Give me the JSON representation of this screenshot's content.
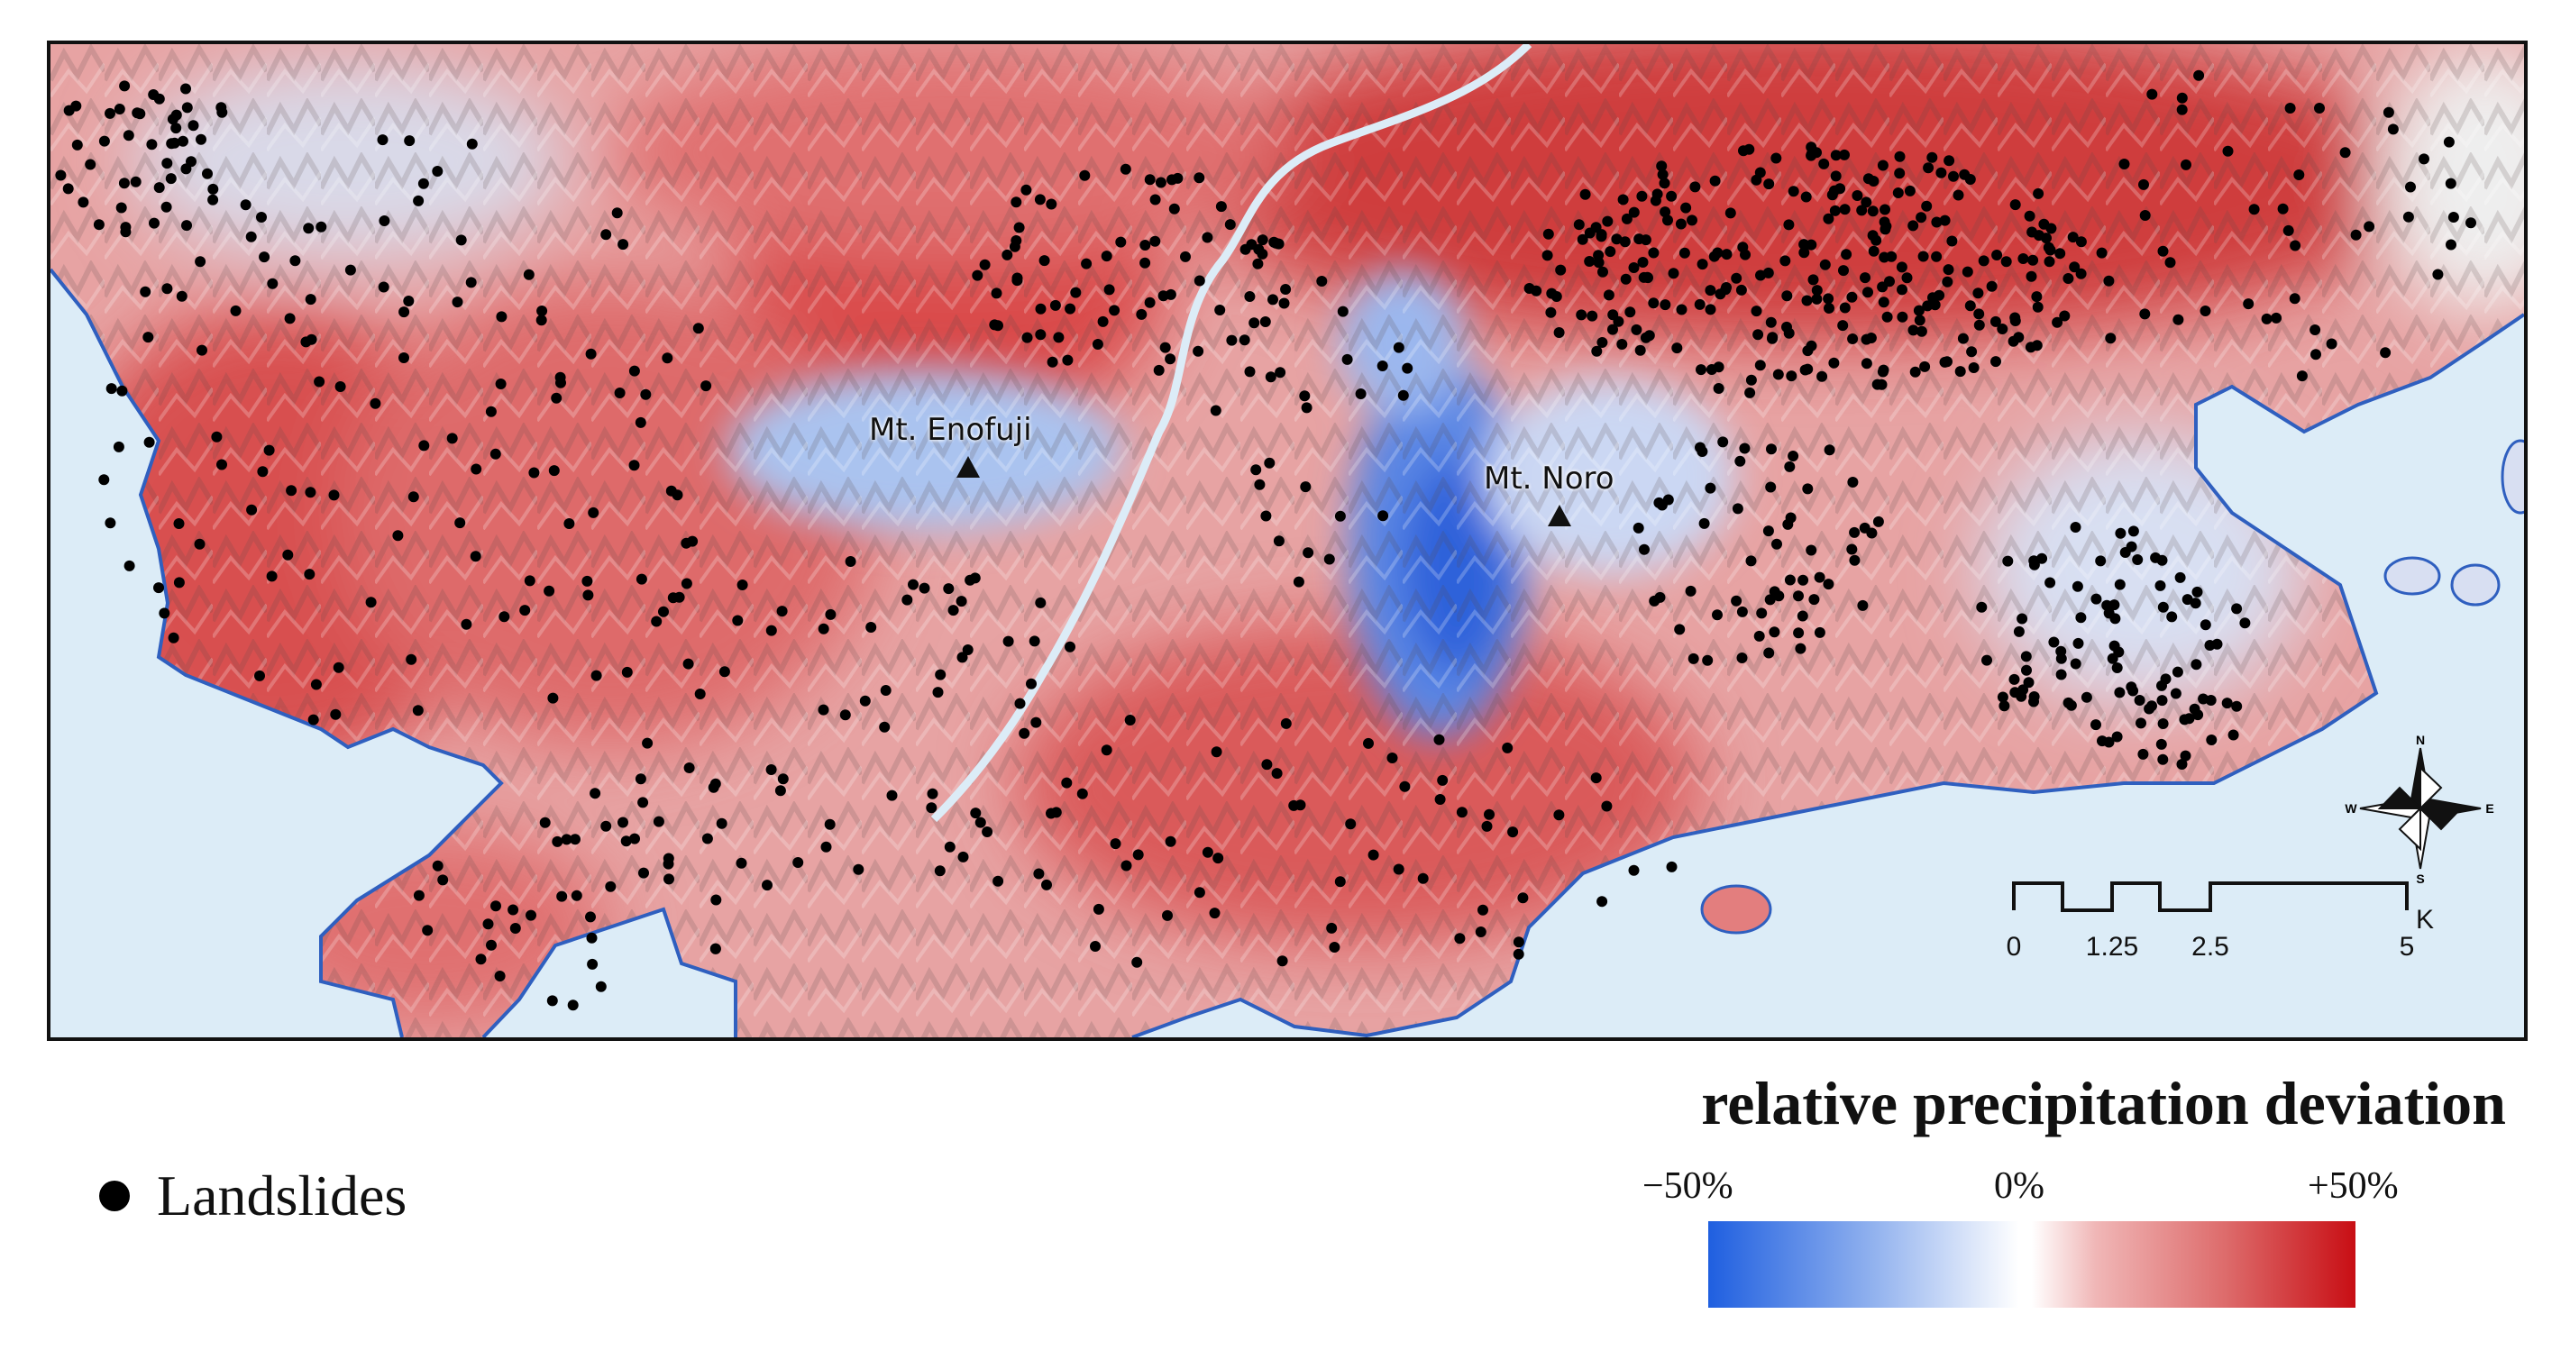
{
  "map": {
    "peaks": [
      {
        "name": "Mt. Enofuji"
      },
      {
        "name": "Mt. Noro"
      }
    ],
    "landslide_color": "#000000",
    "sea_color": "#dcecf7",
    "coastline_color": "#2f5fbf"
  },
  "legend": {
    "landslides_label": "Landslides"
  },
  "colorbar": {
    "title": "relative precipitation deviation",
    "ticks": [
      "−50%",
      "0%",
      "+50%"
    ],
    "colors": {
      "low": "#1f5fe0",
      "mid": "#ffffff",
      "high": "#c80e14"
    }
  },
  "scalebar": {
    "ticks": [
      "0",
      "1.25",
      "2.5",
      "5"
    ],
    "unit": "Km"
  },
  "compass": {
    "n": "N",
    "s": "S",
    "e": "E",
    "w": "W"
  }
}
